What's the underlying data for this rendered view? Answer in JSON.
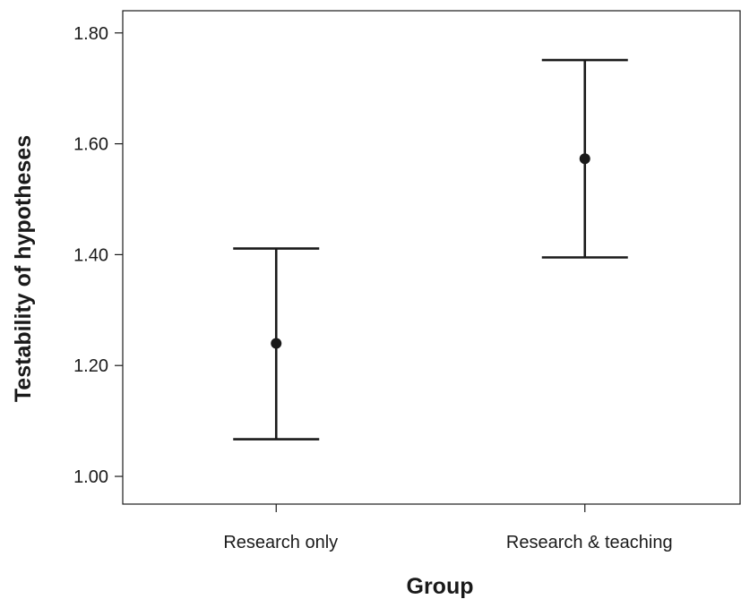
{
  "chart_data": {
    "type": "scatter",
    "subtype": "error-bar",
    "title": "",
    "xlabel": "Group",
    "ylabel": "Testability of hypotheses",
    "ylim": [
      0.95,
      1.84
    ],
    "yticks": [
      1.0,
      1.2,
      1.4,
      1.6,
      1.8
    ],
    "ytick_labels": [
      "1.00",
      "1.20",
      "1.40",
      "1.60",
      "1.80"
    ],
    "categories": [
      "Research only",
      "Research & teaching"
    ],
    "series": [
      {
        "means": [
          1.24,
          1.573
        ],
        "lower": [
          1.067,
          1.395
        ],
        "upper": [
          1.411,
          1.751
        ]
      }
    ],
    "grid": false,
    "legend": "none",
    "colors": {
      "ink": "#1a1a1a",
      "background": "#ffffff"
    }
  }
}
